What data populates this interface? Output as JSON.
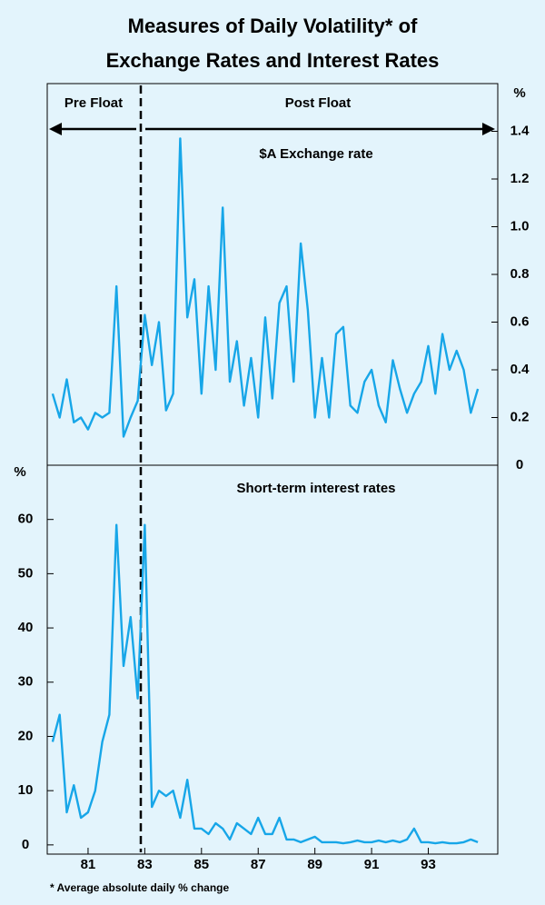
{
  "chart_data": [
    {
      "type": "line",
      "title": [
        "Measures of Daily Volatility* of",
        "Exchange Rates and Interest Rates"
      ],
      "annotations": [
        "Pre Float",
        "Post Float"
      ],
      "y_unit": "%",
      "xlim": [
        79.56,
        95.45
      ],
      "ylim": [
        0,
        1.6
      ],
      "yticks": [
        0,
        0.2,
        0.4,
        0.6,
        0.8,
        {
          "value": 1,
          "label": "1.0"
        },
        1.2,
        1.4
      ],
      "x": [
        79.75,
        80,
        80.25,
        80.5,
        80.75,
        81,
        81.25,
        81.5,
        81.75,
        82,
        82.25,
        82.5,
        82.75,
        83,
        83.25,
        83.5,
        83.75,
        84,
        84.25,
        84.5,
        84.75,
        85,
        85.25,
        85.5,
        85.75,
        86,
        86.25,
        86.5,
        86.75,
        87,
        87.25,
        87.5,
        87.75,
        88,
        88.25,
        88.5,
        88.75,
        89,
        89.25,
        89.5,
        89.75,
        90,
        90.25,
        90.5,
        90.75,
        91,
        91.25,
        91.5,
        91.75,
        92,
        92.25,
        92.5,
        92.75,
        93,
        93.25,
        93.5,
        93.75,
        94,
        94.25,
        94.5,
        94.75
      ],
      "series": [
        {
          "name": "$A Exchange rate",
          "color": "#17a6e8",
          "values": [
            0.3,
            0.2,
            0.36,
            0.18,
            0.2,
            0.15,
            0.22,
            0.2,
            0.22,
            0.75,
            0.12,
            0.2,
            0.27,
            0.63,
            0.42,
            0.6,
            0.23,
            0.3,
            1.37,
            0.62,
            0.78,
            0.3,
            0.75,
            0.4,
            1.08,
            0.35,
            0.52,
            0.25,
            0.45,
            0.2,
            0.62,
            0.28,
            0.68,
            0.75,
            0.35,
            0.93,
            0.65,
            0.2,
            0.45,
            0.2,
            0.55,
            0.58,
            0.25,
            0.22,
            0.35,
            0.4,
            0.25,
            0.18,
            0.44,
            0.32,
            0.22,
            0.3,
            0.35,
            0.5,
            0.3,
            0.55,
            0.4,
            0.48,
            0.4,
            0.22,
            0.32
          ]
        }
      ]
    },
    {
      "type": "line",
      "y_unit": "%",
      "note": "* Average absolute daily % change",
      "xlim": [
        79.56,
        95.45
      ],
      "xticks": [
        81,
        83,
        85,
        87,
        89,
        91,
        93
      ],
      "ylim": [
        -1.7,
        70
      ],
      "yticks": [
        0,
        10,
        20,
        30,
        40,
        50,
        60
      ],
      "x": [
        79.75,
        80,
        80.25,
        80.5,
        80.75,
        81,
        81.25,
        81.5,
        81.75,
        82,
        82.25,
        82.5,
        82.75,
        83,
        83.25,
        83.5,
        83.75,
        84,
        84.25,
        84.5,
        84.75,
        85,
        85.25,
        85.5,
        85.75,
        86,
        86.25,
        86.5,
        86.75,
        87,
        87.25,
        87.5,
        87.75,
        88,
        88.25,
        88.5,
        88.75,
        89,
        89.25,
        89.5,
        89.75,
        90,
        90.25,
        90.5,
        90.75,
        91,
        91.25,
        91.5,
        91.75,
        92,
        92.25,
        92.5,
        92.75,
        93,
        93.25,
        93.5,
        93.75,
        94,
        94.25,
        94.5,
        94.75
      ],
      "series": [
        {
          "name": "Short-term interest rates",
          "color": "#17a6e8",
          "values": [
            19,
            24,
            6,
            11,
            5,
            6,
            10,
            19,
            24,
            59,
            33,
            42,
            27,
            59,
            7,
            10,
            9,
            10,
            5,
            12,
            3,
            3,
            2,
            4,
            3,
            1,
            4,
            3,
            2,
            5,
            2,
            2,
            5,
            1,
            1,
            0.5,
            1,
            1.5,
            0.5,
            0.5,
            0.5,
            0.3,
            0.5,
            0.8,
            0.5,
            0.5,
            0.8,
            0.5,
            0.8,
            0.5,
            1,
            3,
            0.5,
            0.5,
            0.3,
            0.5,
            0.3,
            0.3,
            0.5,
            1,
            0.5
          ]
        }
      ]
    }
  ]
}
